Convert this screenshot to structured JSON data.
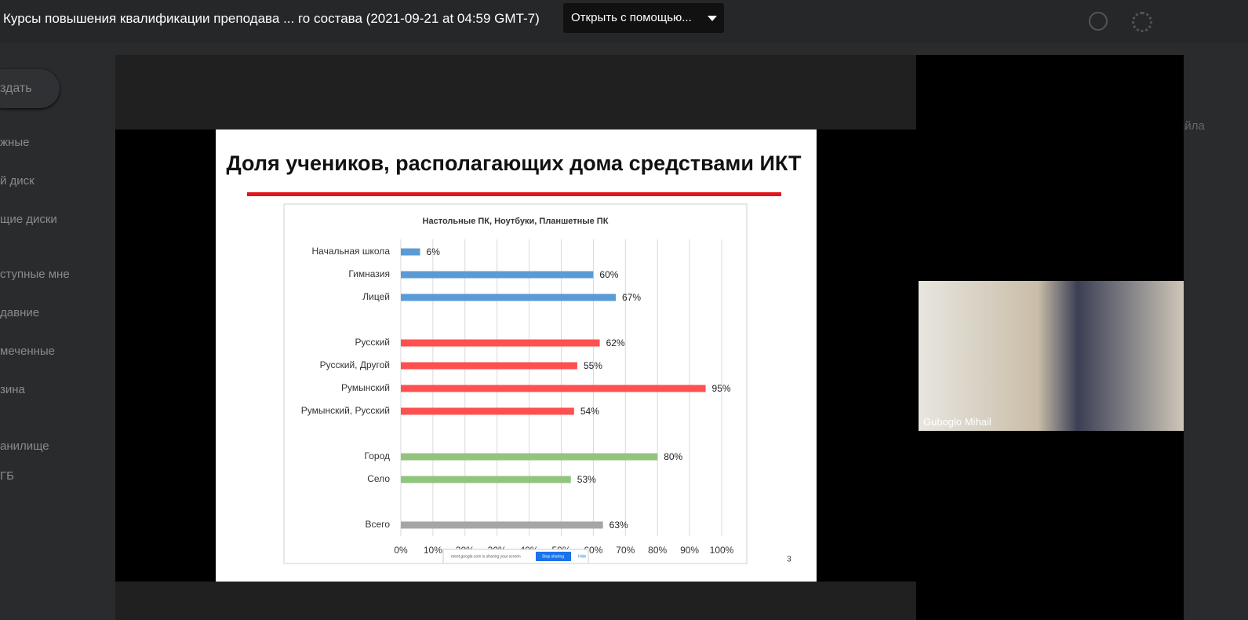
{
  "header": {
    "title": "Курсы повышения квалификации преподава ... го состава (2021-09-21 at 04:59 GMT-7)",
    "open_with": "Открыть с помощью..."
  },
  "sidebar": {
    "create": "здать",
    "items": [
      "жные",
      "й диск",
      "щие диски",
      "ступные мне",
      "давние",
      "меченные",
      "зина",
      "анилище",
      "ГБ"
    ]
  },
  "right_panel": {
    "text": "айла"
  },
  "slide": {
    "title": "Доля учеников, располагающих дома средствами ИКТ",
    "number": "3",
    "share_bar": {
      "text": "meet.google.com is sharing your screen",
      "stop": "Stop sharing",
      "hide": "Hide"
    }
  },
  "chart_data": {
    "type": "bar",
    "orientation": "horizontal",
    "subtitle": "Настольные ПК, Ноутбуки, Планшетные ПК",
    "categories": [
      "Начальная школа",
      "Гимназия",
      "Лицей",
      null,
      "Русский",
      "Русский, Другой",
      "Румынский",
      "Румынский, Русский",
      null,
      "Город",
      "Село",
      null,
      "Всего"
    ],
    "values": [
      6,
      60,
      67,
      null,
      62,
      55,
      95,
      54,
      null,
      80,
      53,
      null,
      63
    ],
    "value_labels": [
      "6%",
      "60%",
      "67%",
      null,
      "62%",
      "55%",
      "95%",
      "54%",
      null,
      "80%",
      "53%",
      null,
      "63%"
    ],
    "colors": [
      "#5b9bd5",
      "#5b9bd5",
      "#5b9bd5",
      null,
      "#ff5050",
      "#ff5050",
      "#ff5050",
      "#ff5050",
      null,
      "#92c47d",
      "#92c47d",
      null,
      "#a6a6a6"
    ],
    "xlim": [
      0,
      100
    ],
    "xticks": [
      {
        "value": 0,
        "label": "0%"
      },
      {
        "value": 10,
        "label": "10%"
      },
      {
        "value": 20,
        "label": "20%"
      },
      {
        "value": 30,
        "label": "30%"
      },
      {
        "value": 40,
        "label": "40%"
      },
      {
        "value": 50,
        "label": "50%"
      },
      {
        "value": 60,
        "label": "60%"
      },
      {
        "value": 70,
        "label": "70%"
      },
      {
        "value": 80,
        "label": "80%"
      },
      {
        "value": 90,
        "label": "90%"
      },
      {
        "value": 100,
        "label": "100%"
      }
    ],
    "grid": true
  },
  "webcam": {
    "name": "Guboglo Mihail"
  }
}
